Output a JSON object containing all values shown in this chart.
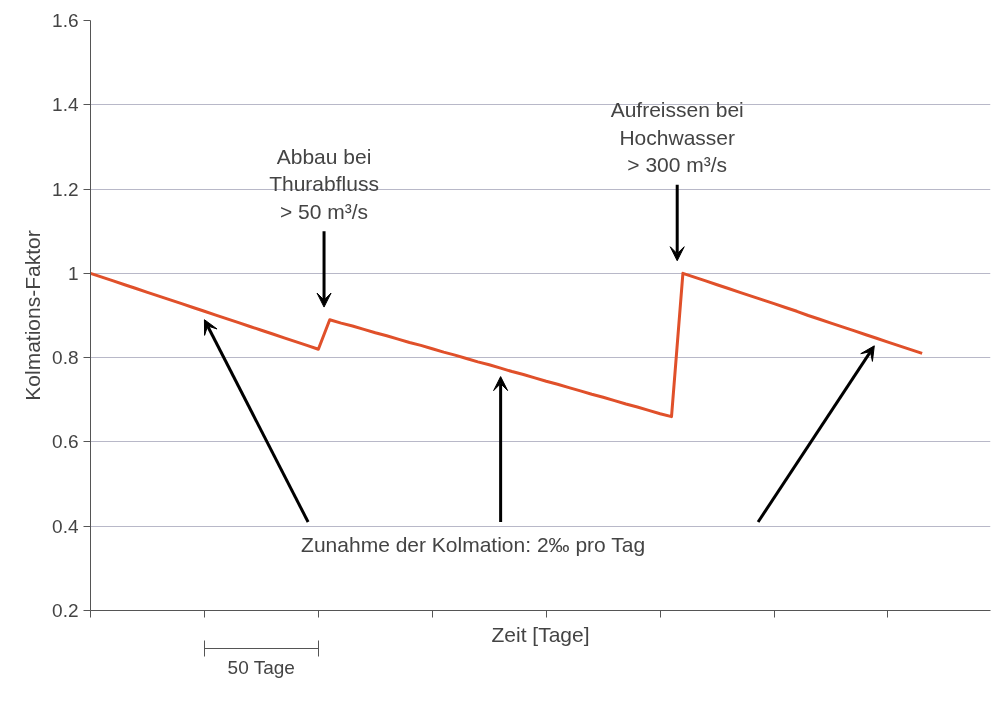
{
  "chart_data": {
    "type": "line",
    "xlabel": "Zeit [Tage]",
    "ylabel": "Kolmations-Faktor",
    "categories": [
      null,
      null,
      null,
      null,
      null,
      null,
      null,
      null,
      null,
      null,
      null,
      null,
      null,
      null,
      null,
      null,
      null,
      null,
      null,
      null,
      null,
      null,
      null,
      null,
      null,
      null,
      null,
      null,
      null,
      null,
      null,
      null,
      null,
      null,
      null,
      null,
      null,
      null,
      null,
      null,
      null,
      null,
      null,
      null,
      null,
      null,
      null,
      null,
      null,
      null,
      null,
      null,
      null,
      null,
      null,
      null,
      null,
      null,
      null,
      null,
      null,
      null,
      null,
      null,
      null,
      null,
      null,
      null,
      null,
      null,
      null,
      null,
      null,
      null,
      null,
      null,
      null,
      null,
      null,
      null
    ],
    "series": [
      {
        "color": "#e0502a",
        "values": [
          1.0,
          0.991,
          0.982,
          0.973,
          0.964,
          0.955,
          0.946,
          0.937,
          0.928,
          0.919,
          0.91,
          0.901,
          0.892,
          0.883,
          0.874,
          0.865,
          0.856,
          0.847,
          0.838,
          0.829,
          0.82,
          0.89,
          0.882,
          0.875,
          0.867,
          0.859,
          0.852,
          0.844,
          0.836,
          0.829,
          0.821,
          0.813,
          0.806,
          0.798,
          0.79,
          0.783,
          0.775,
          0.767,
          0.76,
          0.752,
          0.744,
          0.737,
          0.729,
          0.721,
          0.713,
          0.706,
          0.698,
          0.69,
          0.683,
          0.675,
          0.667,
          0.66,
          1.0,
          0.991,
          0.982,
          0.973,
          0.964,
          0.955,
          0.946,
          0.937,
          0.928,
          0.919,
          0.91,
          0.9,
          0.891,
          0.882,
          0.873,
          0.864,
          0.855,
          0.846,
          0.837,
          0.828,
          0.819,
          0.81,
          null,
          null,
          null,
          null,
          null,
          null
        ]
      }
    ],
    "ylim": [
      0.2,
      1.6
    ],
    "yticks": [
      0.2,
      0.4,
      0.6,
      0.8,
      1,
      1.2,
      1.4,
      1.6
    ],
    "tick_labels": "y",
    "grid": "y",
    "marker": "none",
    "line_style": "solid",
    "annotations": [
      "Abbau bei\nThurabfluss\n> 50 m³/s",
      "Aufreissen bei\nHochwasser\n> 300 m³/s",
      "Zunahme der Kolmation: 2‰ pro Tag",
      "50 Tage"
    ]
  }
}
